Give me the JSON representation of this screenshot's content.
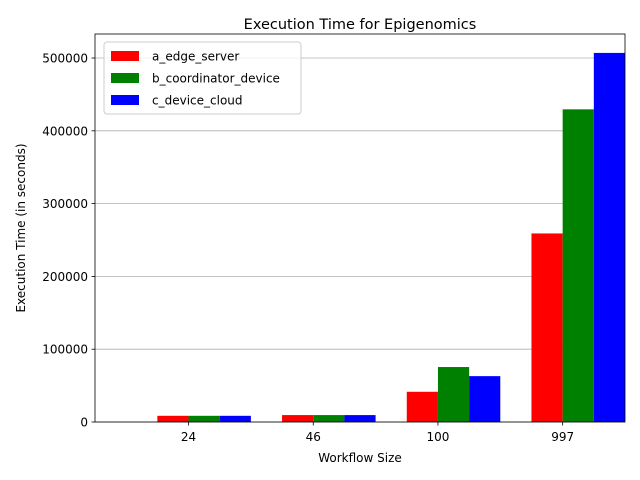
{
  "chart_data": {
    "type": "bar",
    "title": "Execution Time for Epigenomics",
    "xlabel": "Workflow Size",
    "ylabel": "Execution Time (in seconds)",
    "categories": [
      "24",
      "46",
      "100",
      "997"
    ],
    "series": [
      {
        "name": "a_edge_server",
        "color": "#ff0000",
        "values": [
          8500,
          9500,
          41500,
          259000
        ]
      },
      {
        "name": "b_coordinator_device",
        "color": "#008000",
        "values": [
          8500,
          9500,
          75500,
          429500
        ]
      },
      {
        "name": "c_device_cloud",
        "color": "#0000ff",
        "values": [
          8500,
          9500,
          63000,
          507000
        ]
      }
    ],
    "ylim": [
      0,
      533000
    ],
    "yticks": [
      0,
      100000,
      200000,
      300000,
      400000,
      500000
    ],
    "ytick_labels": [
      "0",
      "100000",
      "200000",
      "300000",
      "400000",
      "500000"
    ],
    "grid": "y",
    "legend_position": "top-left"
  }
}
